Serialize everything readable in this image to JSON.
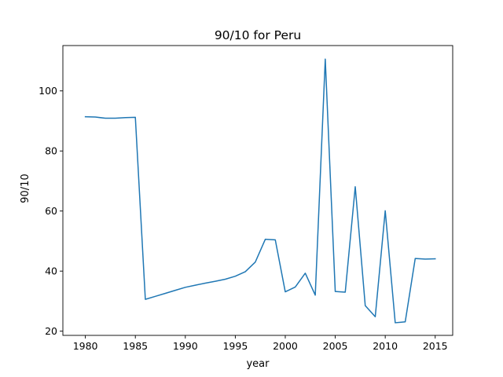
{
  "chart_data": {
    "type": "line",
    "title": "90/10 for Peru",
    "xlabel": "year",
    "ylabel": "90/10",
    "xlim": [
      1977.75,
      2016.75
    ],
    "ylim": [
      18.6,
      115.1
    ],
    "xticks": [
      1980,
      1985,
      1990,
      1995,
      2000,
      2005,
      2010,
      2015
    ],
    "yticks": [
      20,
      40,
      60,
      80,
      100
    ],
    "grid": false,
    "line_color": "#1f77b4",
    "series": [
      {
        "x": [
          1980,
          1981,
          1982,
          1983,
          1984,
          1985,
          1986,
          1987,
          1988,
          1989,
          1990,
          1991,
          1992,
          1993,
          1994,
          1995,
          1996,
          1997,
          1998,
          1999,
          2000,
          2001,
          2002,
          2003,
          2004,
          2005,
          2006,
          2007,
          2008,
          2009,
          2010,
          2011,
          2012,
          2013,
          2014,
          2015
        ],
        "y": [
          91.4,
          91.3,
          90.9,
          90.9,
          91.1,
          91.2,
          30.6,
          31.6,
          32.6,
          33.6,
          34.6,
          35.3,
          36.0,
          36.6,
          37.3,
          38.3,
          39.8,
          43.0,
          50.6,
          50.4,
          33.1,
          34.7,
          39.3,
          32.0,
          110.6,
          33.2,
          33.0,
          68.1,
          28.5,
          24.8,
          60.1,
          22.8,
          23.1,
          44.2,
          44.0,
          44.1
        ]
      }
    ]
  }
}
